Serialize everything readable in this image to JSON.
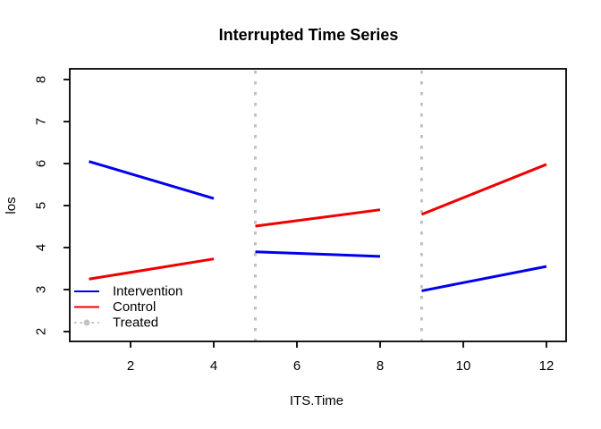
{
  "chart_data": {
    "type": "line",
    "title": "Interrupted Time Series",
    "xlabel": "ITS.Time",
    "ylabel": "los",
    "x_ticks": [
      2,
      4,
      6,
      8,
      10,
      12
    ],
    "y_ticks": [
      2,
      3,
      4,
      5,
      6,
      7,
      8
    ],
    "xlim": [
      0.56,
      12.44
    ],
    "ylim": [
      1.76,
      8.24
    ],
    "grid": false,
    "background": "#ffffff",
    "axis_color": "#000000",
    "series": [
      {
        "name": "Intervention",
        "color": "#0000EE",
        "style": "solid",
        "segments": [
          [
            [
              1,
              6.05
            ],
            [
              4,
              5.17
            ]
          ],
          [
            [
              5,
              3.9
            ],
            [
              8,
              3.79
            ]
          ],
          [
            [
              9,
              2.97
            ],
            [
              12,
              3.55
            ]
          ]
        ]
      },
      {
        "name": "Control",
        "color": "#EE0000",
        "style": "solid",
        "segments": [
          [
            [
              1,
              3.25
            ],
            [
              4,
              3.73
            ]
          ],
          [
            [
              5,
              4.51
            ],
            [
              8,
              4.9
            ]
          ],
          [
            [
              9,
              4.79
            ],
            [
              12,
              5.98
            ]
          ]
        ]
      },
      {
        "name": "Treated",
        "color": "#C2C2C2",
        "style": "dotted-vline",
        "vlines": [
          5,
          9
        ]
      }
    ],
    "legend": {
      "position": "bottomleft",
      "frame": false,
      "entries": [
        {
          "label": "Intervention",
          "color": "#0000EE",
          "style": "solid"
        },
        {
          "label": "Control",
          "color": "#EE0000",
          "style": "solid"
        },
        {
          "label": "Treated",
          "color": "#C2C2C2",
          "style": "dotted-point"
        }
      ]
    }
  }
}
